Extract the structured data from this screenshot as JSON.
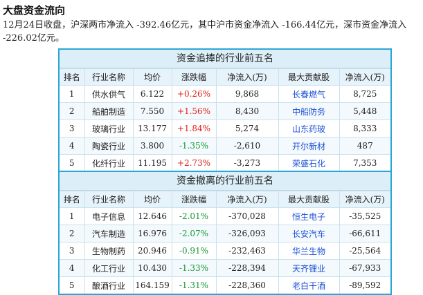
{
  "page": {
    "title": "大盘资金流向",
    "summary": "12月24日收盘，沪深两市净流入 -392.46亿元，其中沪市资金净流入 -166.44亿元，深市资金净流入 -226.02亿元。"
  },
  "colors": {
    "border": "#2aa6d6",
    "positive": "#e0201b",
    "negative": "#119933",
    "link": "#1a4fd6"
  },
  "inflow_table": {
    "title": "资金追捧的行业前五名",
    "headers": [
      "排名",
      "行业名称",
      "均价",
      "涨跌幅",
      "净流入(万)",
      "最大贡献股",
      "净流入(万)"
    ],
    "rows": [
      {
        "rank": "1",
        "industry": "供水供气",
        "avg_price": "6.122",
        "change": "+0.26%",
        "net_inflow": "9,868",
        "top_stock": "长春燃气",
        "stock_inflow": "8,725"
      },
      {
        "rank": "2",
        "industry": "船舶制造",
        "avg_price": "7.550",
        "change": "+1.56%",
        "net_inflow": "8,430",
        "top_stock": "中船防务",
        "stock_inflow": "5,448"
      },
      {
        "rank": "3",
        "industry": "玻璃行业",
        "avg_price": "13.177",
        "change": "+1.84%",
        "net_inflow": "5,274",
        "top_stock": "山东药玻",
        "stock_inflow": "8,333"
      },
      {
        "rank": "4",
        "industry": "陶瓷行业",
        "avg_price": "3.800",
        "change": "-1.35%",
        "net_inflow": "-2,610",
        "top_stock": "开尔新材",
        "stock_inflow": "487"
      },
      {
        "rank": "5",
        "industry": "化纤行业",
        "avg_price": "11.195",
        "change": "+2.73%",
        "net_inflow": "-3,273",
        "top_stock": "荣盛石化",
        "stock_inflow": "7,353"
      }
    ]
  },
  "outflow_table": {
    "title": "资金撤离的行业前五名",
    "headers": [
      "排名",
      "行业名称",
      "均价",
      "涨跌幅",
      "净流入(万)",
      "最大贡献股",
      "净流入(万)"
    ],
    "rows": [
      {
        "rank": "1",
        "industry": "电子信息",
        "avg_price": "12.646",
        "change": "-2.01%",
        "net_inflow": "-370,028",
        "top_stock": "恒生电子",
        "stock_inflow": "-35,525"
      },
      {
        "rank": "2",
        "industry": "汽车制造",
        "avg_price": "16.976",
        "change": "-2.07%",
        "net_inflow": "-326,093",
        "top_stock": "长安汽车",
        "stock_inflow": "-66,611"
      },
      {
        "rank": "3",
        "industry": "生物制药",
        "avg_price": "20.946",
        "change": "-0.91%",
        "net_inflow": "-232,463",
        "top_stock": "华兰生物",
        "stock_inflow": "-25,564"
      },
      {
        "rank": "4",
        "industry": "化工行业",
        "avg_price": "10.430",
        "change": "-1.33%",
        "net_inflow": "-228,394",
        "top_stock": "天齐锂业",
        "stock_inflow": "-67,933"
      },
      {
        "rank": "5",
        "industry": "酿酒行业",
        "avg_price": "164.159",
        "change": "-1.31%",
        "net_inflow": "-228,360",
        "top_stock": "老白干酒",
        "stock_inflow": "-89,592"
      }
    ]
  }
}
